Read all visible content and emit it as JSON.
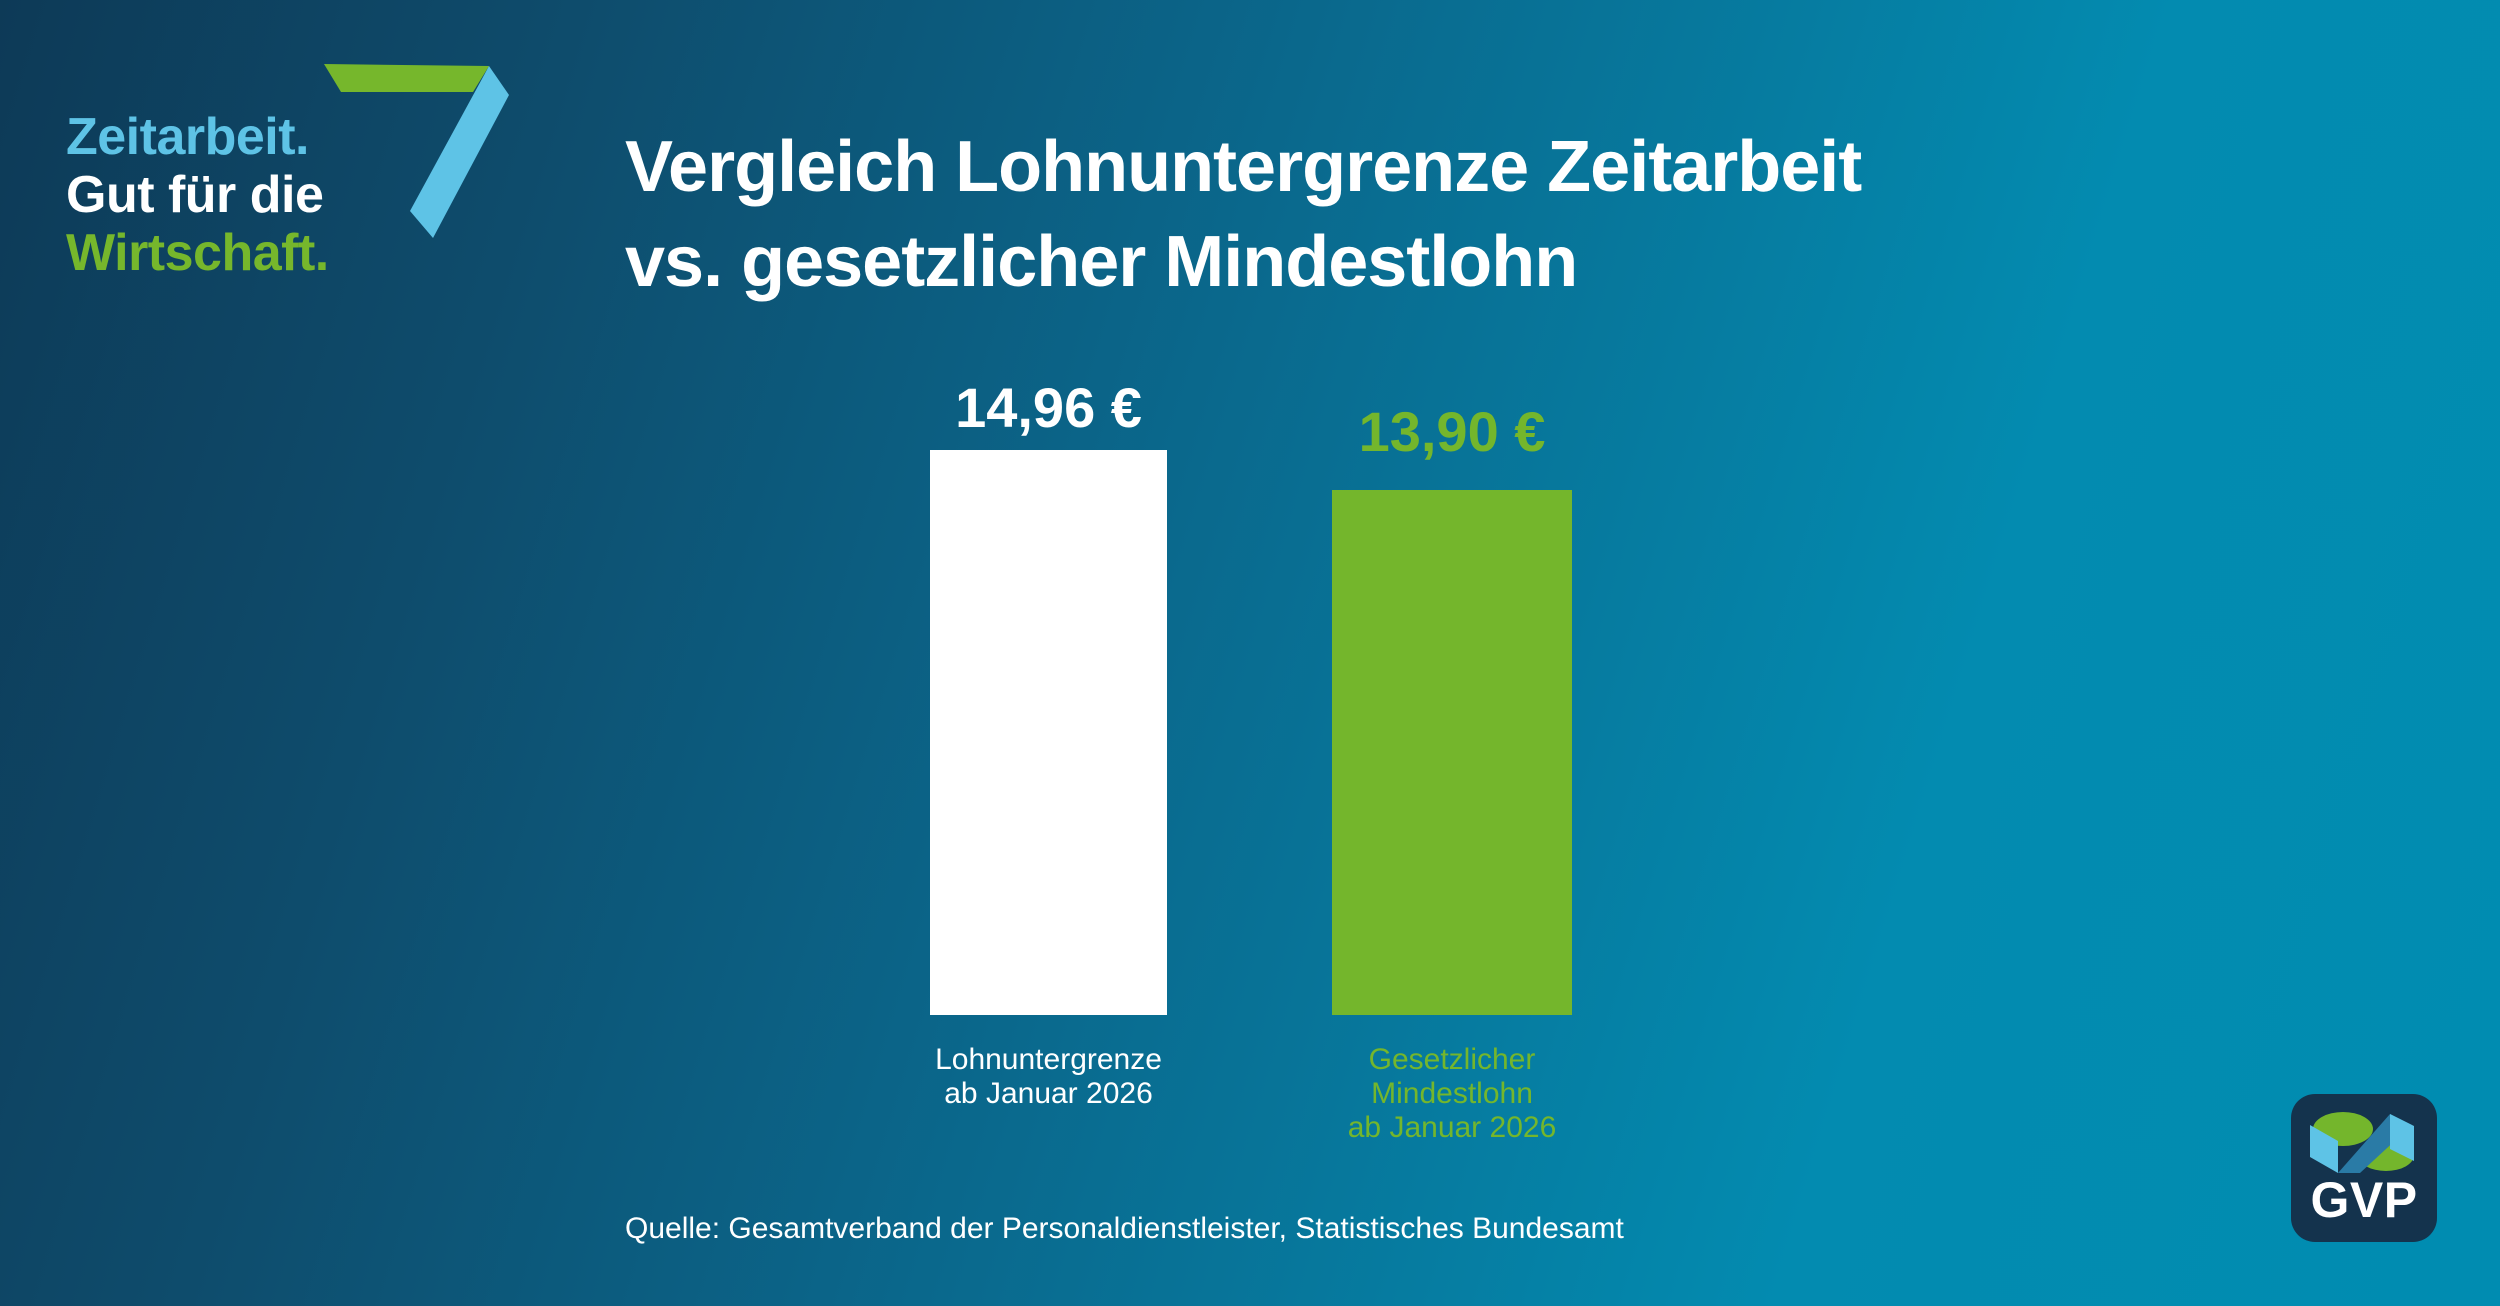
{
  "brand": {
    "line1": "Zeitarbeit.",
    "line2": "Gut für die",
    "line3": "Wirtschaft."
  },
  "title": {
    "line1": "Vergleich Lohnuntergrenze Zeitarbeit",
    "line2": "vs. gesetzlicher Mindestlohn"
  },
  "source": "Quelle: Gesamtverband der Personaldienstleister, Statistisches Bundesamt",
  "gvp": {
    "label": "GVP"
  },
  "colors": {
    "light_blue": "#5ec3e6",
    "green": "#74b62c",
    "white": "#ffffff",
    "bg_dark_navy": "#0d3a57",
    "bg_teal": "#008cb1",
    "gvp_box_navy": "#14334d"
  },
  "chart_data": {
    "type": "bar",
    "title": "Vergleich Lohnuntergrenze Zeitarbeit vs. gesetzlicher Mindestlohn",
    "categories": [
      "Lohnuntergrenze ab Januar 2026",
      "Gesetzlicher Mindestlohn ab Januar 2026"
    ],
    "values": [
      14.96,
      13.9
    ],
    "xlabel": "",
    "ylabel": "",
    "ylim": [
      0,
      14.96
    ],
    "grid": false,
    "legend": false,
    "axes_visible": false,
    "bars": [
      {
        "value": 14.96,
        "value_label": "14,96 €",
        "label_lines": [
          "Lohnuntergrenze",
          "ab Januar 2026"
        ],
        "bar_color": "#ffffff",
        "text_color": "#ffffff"
      },
      {
        "value": 13.9,
        "value_label": "13,90 €",
        "label_lines": [
          "Gesetzlicher",
          "Mindestlohn",
          "ab Januar 2026"
        ],
        "bar_color": "#74b62c",
        "text_color": "#74b62c"
      }
    ],
    "source": "Quelle: Gesamtverband der Personaldienstleister, Statistisches Bundesamt"
  }
}
